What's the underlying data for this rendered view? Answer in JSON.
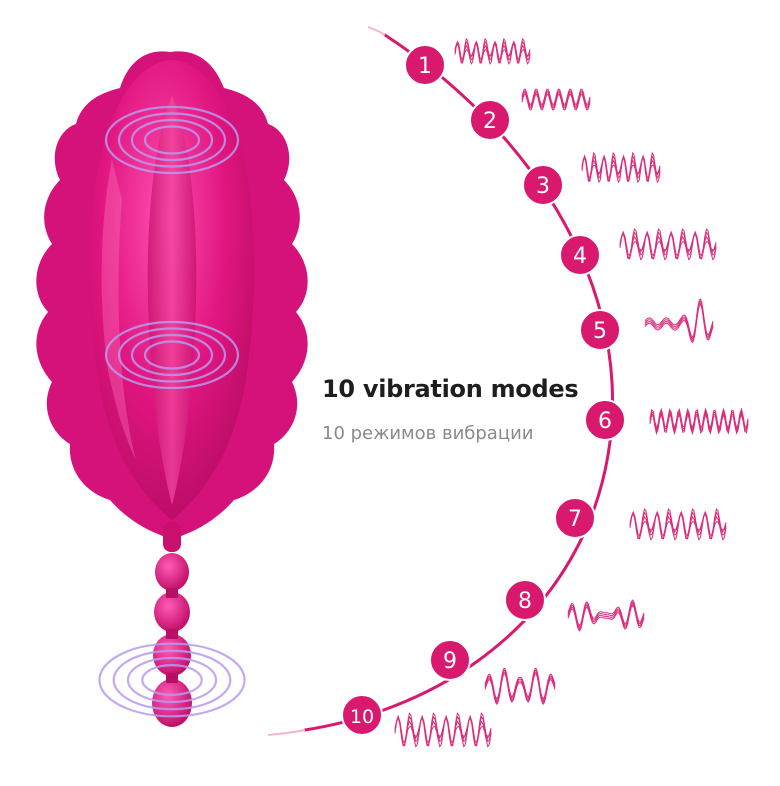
{
  "heading": {
    "title": "10 vibration modes",
    "subtitle": "10 режимов вибрации"
  },
  "colors": {
    "accent": "#d8196e",
    "product": "#e0157f",
    "product_light": "#f055a8",
    "product_dark": "#b80f66",
    "ripple": "#b89bf0",
    "text_dark": "#1e1e1e",
    "text_muted": "#8a8a8a"
  },
  "product_image": {
    "icon": "wearable-vibrator-illustration"
  },
  "modes": [
    {
      "number": "1",
      "pattern": "burst-wave"
    },
    {
      "number": "2",
      "pattern": "steady-wave"
    },
    {
      "number": "3",
      "pattern": "dense-burst"
    },
    {
      "number": "4",
      "pattern": "rising-pulse"
    },
    {
      "number": "5",
      "pattern": "single-swell"
    },
    {
      "number": "6",
      "pattern": "continuous-dense"
    },
    {
      "number": "7",
      "pattern": "layered-wave"
    },
    {
      "number": "8",
      "pattern": "rolling-wave"
    },
    {
      "number": "9",
      "pattern": "zigzag-burst"
    },
    {
      "number": "10",
      "pattern": "mixed-pulse"
    }
  ]
}
